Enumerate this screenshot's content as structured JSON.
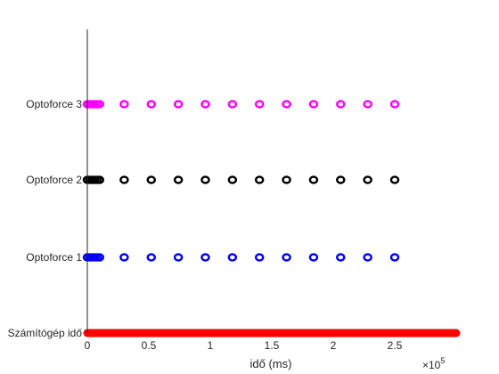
{
  "chart_data": {
    "type": "scatter",
    "title": "",
    "xlabel": "idő (ms)",
    "ylabel": "",
    "x_exponent_label": "×10",
    "x_exponent_power": "5",
    "xlim": [
      0,
      300000
    ],
    "xticks": [
      0,
      50000,
      100000,
      150000,
      200000,
      250000
    ],
    "xtick_labels": [
      "0",
      "0.5",
      "1",
      "1.5",
      "2",
      "2.5"
    ],
    "categories": [
      "Számítógép idő",
      "Optoforce 1",
      "Optoforce 2",
      "Optoforce 3"
    ],
    "grid": false,
    "legend": "none",
    "marker": "circle",
    "series": [
      {
        "category": "Számítógép idő",
        "color": "#ff0000",
        "continuous": true,
        "x_range": [
          0,
          300000
        ]
      },
      {
        "category": "Optoforce 1",
        "color": "#0000ff",
        "x": [
          0,
          2000,
          4000,
          6000,
          8000,
          10000,
          30000,
          52000,
          74000,
          96000,
          118000,
          140000,
          162000,
          184000,
          206000,
          228000,
          250000
        ]
      },
      {
        "category": "Optoforce 2",
        "color": "#000000",
        "x": [
          0,
          2000,
          4000,
          6000,
          8000,
          10000,
          30000,
          52000,
          74000,
          96000,
          118000,
          140000,
          162000,
          184000,
          206000,
          228000,
          250000
        ]
      },
      {
        "category": "Optoforce 3",
        "color": "#ff00ff",
        "x": [
          0,
          2000,
          4000,
          6000,
          8000,
          10000,
          30000,
          52000,
          74000,
          96000,
          118000,
          140000,
          162000,
          184000,
          206000,
          228000,
          250000
        ]
      }
    ]
  }
}
